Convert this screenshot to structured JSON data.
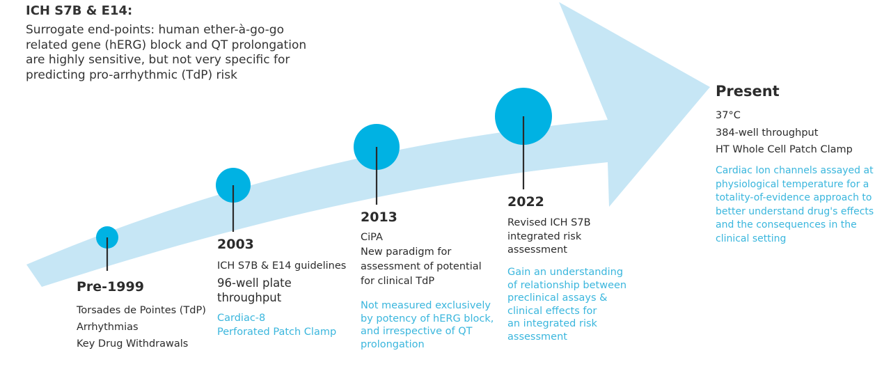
{
  "intro": {
    "title": "ICH S7B & E14:",
    "lines": [
      "Surrogate end-points: human ether-à-go-go",
      "related gene (hERG) block and QT prolongation",
      "are highly sensitive, but not very specific for",
      "predicting pro-arrhythmic (TdP) risk"
    ]
  },
  "colors": {
    "arrow": "#c6e6f5",
    "marker": "#00b2e3",
    "accent_text": "#3ab6dd",
    "body_text": "#2b2b2b"
  },
  "milestones": [
    {
      "year": "Pre-1999",
      "details": [
        "Torsades de Pointes (TdP)",
        "Arrhythmias",
        "Key Drug Withdrawals"
      ],
      "highlight": []
    },
    {
      "year": "2003",
      "details": [
        "ICH S7B & E14 guidelines"
      ],
      "details_large": [
        "96-well plate",
        "throughput"
      ],
      "highlight": [
        "Cardiac-8",
        "Perforated Patch Clamp"
      ]
    },
    {
      "year": "2013",
      "details": [
        "CiPA",
        "New paradigm for",
        "assessment of potential",
        "for clinical TdP"
      ],
      "highlight": [
        "Not measured exclusively",
        "by potency of hERG block,",
        "and irrespective of QT",
        "prolongation"
      ]
    },
    {
      "year": "2022",
      "details": [
        "Revised ICH S7B",
        "integrated risk",
        "assessment"
      ],
      "highlight": [
        "Gain an understanding",
        "of relationship between",
        "preclinical assays &",
        "clinical effects for",
        "an integrated risk",
        "assessment"
      ]
    },
    {
      "year": "Present",
      "details": [
        "37°C",
        "384-well throughput",
        "HT Whole Cell Patch Clamp"
      ],
      "highlight": [
        "Cardiac Ion channels assayed at",
        "physiological temperature for a",
        "totality-of-evidence approach to",
        "better understand drug's effects",
        "and the consequences in the",
        "clinical setting"
      ]
    }
  ]
}
